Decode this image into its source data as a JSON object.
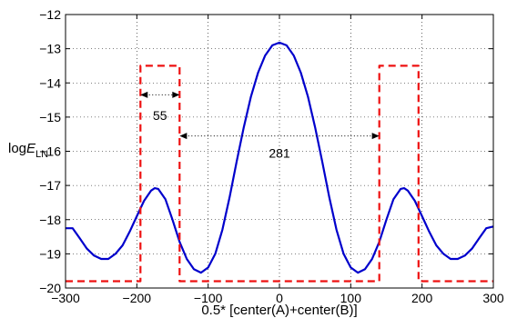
{
  "chart_data": {
    "type": "line",
    "xlabel": "0.5* [center(A)+center(B)]",
    "ylabel_main": "log",
    "ylabel_italic": "E",
    "ylabel_sub": "LN",
    "xlim": [
      -300,
      300
    ],
    "ylim": [
      -20,
      -12
    ],
    "xticks": [
      -300,
      -200,
      -100,
      0,
      100,
      200,
      300
    ],
    "xtick_labels": [
      "−300",
      "−200",
      "−100",
      "0",
      "100",
      "200",
      "300"
    ],
    "yticks": [
      -12,
      -13,
      -14,
      -15,
      -16,
      -17,
      -18,
      -19,
      -20
    ],
    "ytick_labels": [
      "−12",
      "−13",
      "−14",
      "−15",
      "−16",
      "−17",
      "−18",
      "−19",
      "−20"
    ],
    "grid": true,
    "series": [
      {
        "style": "solid",
        "color": "#0000cc",
        "x": [
          -300,
          -290,
          -280,
          -270,
          -260,
          -250,
          -240,
          -230,
          -220,
          -210,
          -200,
          -190,
          -180,
          -175,
          -170,
          -160,
          -150,
          -140,
          -130,
          -120,
          -110,
          -100,
          -90,
          -80,
          -70,
          -60,
          -50,
          -40,
          -30,
          -20,
          -10,
          0,
          10,
          20,
          30,
          40,
          50,
          60,
          70,
          80,
          90,
          100,
          110,
          120,
          130,
          140,
          150,
          160,
          170,
          175,
          180,
          190,
          200,
          210,
          220,
          230,
          240,
          250,
          260,
          270,
          280,
          290,
          300
        ],
        "y": [
          -18.25,
          -18.25,
          -18.55,
          -18.85,
          -19.05,
          -19.15,
          -19.15,
          -19.0,
          -18.75,
          -18.35,
          -17.9,
          -17.45,
          -17.15,
          -17.08,
          -17.1,
          -17.4,
          -18.0,
          -18.65,
          -19.15,
          -19.45,
          -19.55,
          -19.4,
          -19.0,
          -18.3,
          -17.35,
          -16.3,
          -15.3,
          -14.4,
          -13.7,
          -13.2,
          -12.9,
          -12.82,
          -12.9,
          -13.2,
          -13.7,
          -14.4,
          -15.3,
          -16.3,
          -17.35,
          -18.3,
          -19.0,
          -19.4,
          -19.55,
          -19.45,
          -19.15,
          -18.65,
          -18.0,
          -17.4,
          -17.1,
          -17.08,
          -17.15,
          -17.45,
          -17.9,
          -18.35,
          -18.75,
          -19.0,
          -19.15,
          -19.15,
          -19.05,
          -18.85,
          -18.55,
          -18.25,
          -18.2
        ]
      },
      {
        "style": "dashed",
        "color": "#ee1111",
        "x": [
          -300,
          -195,
          -195,
          -140,
          -140,
          140,
          140,
          195,
          195,
          300
        ],
        "y": [
          -19.8,
          -19.8,
          -13.5,
          -13.5,
          -19.8,
          -19.8,
          -13.5,
          -13.5,
          -19.8,
          -19.8
        ]
      }
    ],
    "annotations": [
      {
        "label": "55",
        "x1": -195,
        "x2": -140,
        "y": -14.35,
        "label_y": -14.95
      },
      {
        "label": "281",
        "x1": -140,
        "x2": 140,
        "y": -15.55,
        "label_y": -16.05
      }
    ]
  }
}
